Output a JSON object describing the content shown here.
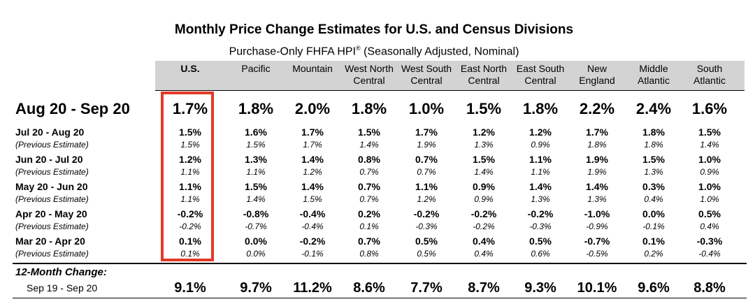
{
  "title": "Monthly Price Change Estimates for U.S. and Census Divisions",
  "subtitle_main": "Purchase-Only FHFA HPI",
  "subtitle_mark": "®",
  "subtitle_rest": " (Seasonally Adjusted, Nominal)",
  "chart_data": {
    "type": "table",
    "columns": [
      {
        "line1": "U.S.",
        "line2": ""
      },
      {
        "line1": "Pacific",
        "line2": ""
      },
      {
        "line1": "Mountain",
        "line2": ""
      },
      {
        "line1": "West North",
        "line2": "Central"
      },
      {
        "line1": "West South",
        "line2": "Central"
      },
      {
        "line1": "East North",
        "line2": "Central"
      },
      {
        "line1": "East South",
        "line2": "Central"
      },
      {
        "line1": "New",
        "line2": "England"
      },
      {
        "line1": "Middle",
        "line2": "Atlantic"
      },
      {
        "line1": "South",
        "line2": "Atlantic"
      }
    ],
    "current": {
      "label": "Aug  20 - Sep 20",
      "values": [
        "1.7%",
        "1.8%",
        "2.0%",
        "1.8%",
        "1.0%",
        "1.5%",
        "1.8%",
        "2.2%",
        "2.4%",
        "1.6%"
      ]
    },
    "months": [
      {
        "label": "Jul  20 - Aug 20",
        "values": [
          "1.5%",
          "1.6%",
          "1.7%",
          "1.5%",
          "1.7%",
          "1.2%",
          "1.2%",
          "1.7%",
          "1.8%",
          "1.5%"
        ],
        "prev_label": "(Previous Estimate)",
        "prev_values": [
          "1.5%",
          "1.5%",
          "1.7%",
          "1.4%",
          "1.9%",
          "1.3%",
          "0.9%",
          "1.8%",
          "1.8%",
          "1.4%"
        ]
      },
      {
        "label": "Jun  20 - Jul 20",
        "values": [
          "1.2%",
          "1.3%",
          "1.4%",
          "0.8%",
          "0.7%",
          "1.5%",
          "1.1%",
          "1.9%",
          "1.5%",
          "1.0%"
        ],
        "prev_label": "(Previous Estimate)",
        "prev_values": [
          "1.1%",
          "1.1%",
          "1.2%",
          "0.7%",
          "0.7%",
          "1.4%",
          "1.1%",
          "1.9%",
          "1.3%",
          "0.9%"
        ]
      },
      {
        "label": "May  20 - Jun 20",
        "values": [
          "1.1%",
          "1.5%",
          "1.4%",
          "0.7%",
          "1.1%",
          "0.9%",
          "1.4%",
          "1.4%",
          "0.3%",
          "1.0%"
        ],
        "prev_label": "(Previous Estimate)",
        "prev_values": [
          "1.1%",
          "1.4%",
          "1.5%",
          "0.7%",
          "1.2%",
          "0.9%",
          "1.3%",
          "1.3%",
          "0.4%",
          "1.0%"
        ]
      },
      {
        "label": "Apr  20 - May 20",
        "values": [
          "-0.2%",
          "-0.8%",
          "-0.4%",
          "0.2%",
          "-0.2%",
          "-0.2%",
          "-0.2%",
          "-1.0%",
          "0.0%",
          "0.5%"
        ],
        "prev_label": "(Previous Estimate)",
        "prev_values": [
          "-0.2%",
          "-0.7%",
          "-0.4%",
          "0.1%",
          "-0.3%",
          "-0.2%",
          "-0.3%",
          "-0.9%",
          "-0.1%",
          "0.4%"
        ]
      },
      {
        "label": "Mar  20 - Apr 20",
        "values": [
          "0.1%",
          "0.0%",
          "-0.2%",
          "0.7%",
          "0.5%",
          "0.4%",
          "0.5%",
          "-0.7%",
          "0.1%",
          "-0.3%"
        ],
        "prev_label": "(Previous Estimate)",
        "prev_values": [
          "0.1%",
          "0.0%",
          "-0.1%",
          "0.8%",
          "0.5%",
          "0.4%",
          "0.6%",
          "-0.5%",
          "0.2%",
          "-0.4%"
        ]
      }
    ],
    "twelve_month": {
      "label": "12-Month Change:",
      "sublabel": "Sep  19 - Sep 20",
      "values": [
        "9.1%",
        "9.7%",
        "11.2%",
        "8.6%",
        "7.7%",
        "8.7%",
        "9.3%",
        "10.1%",
        "9.6%",
        "8.8%"
      ]
    },
    "highlight": {
      "column": "U.S.",
      "color": "#e23a2a"
    },
    "header_color": "#d3d3d3"
  }
}
